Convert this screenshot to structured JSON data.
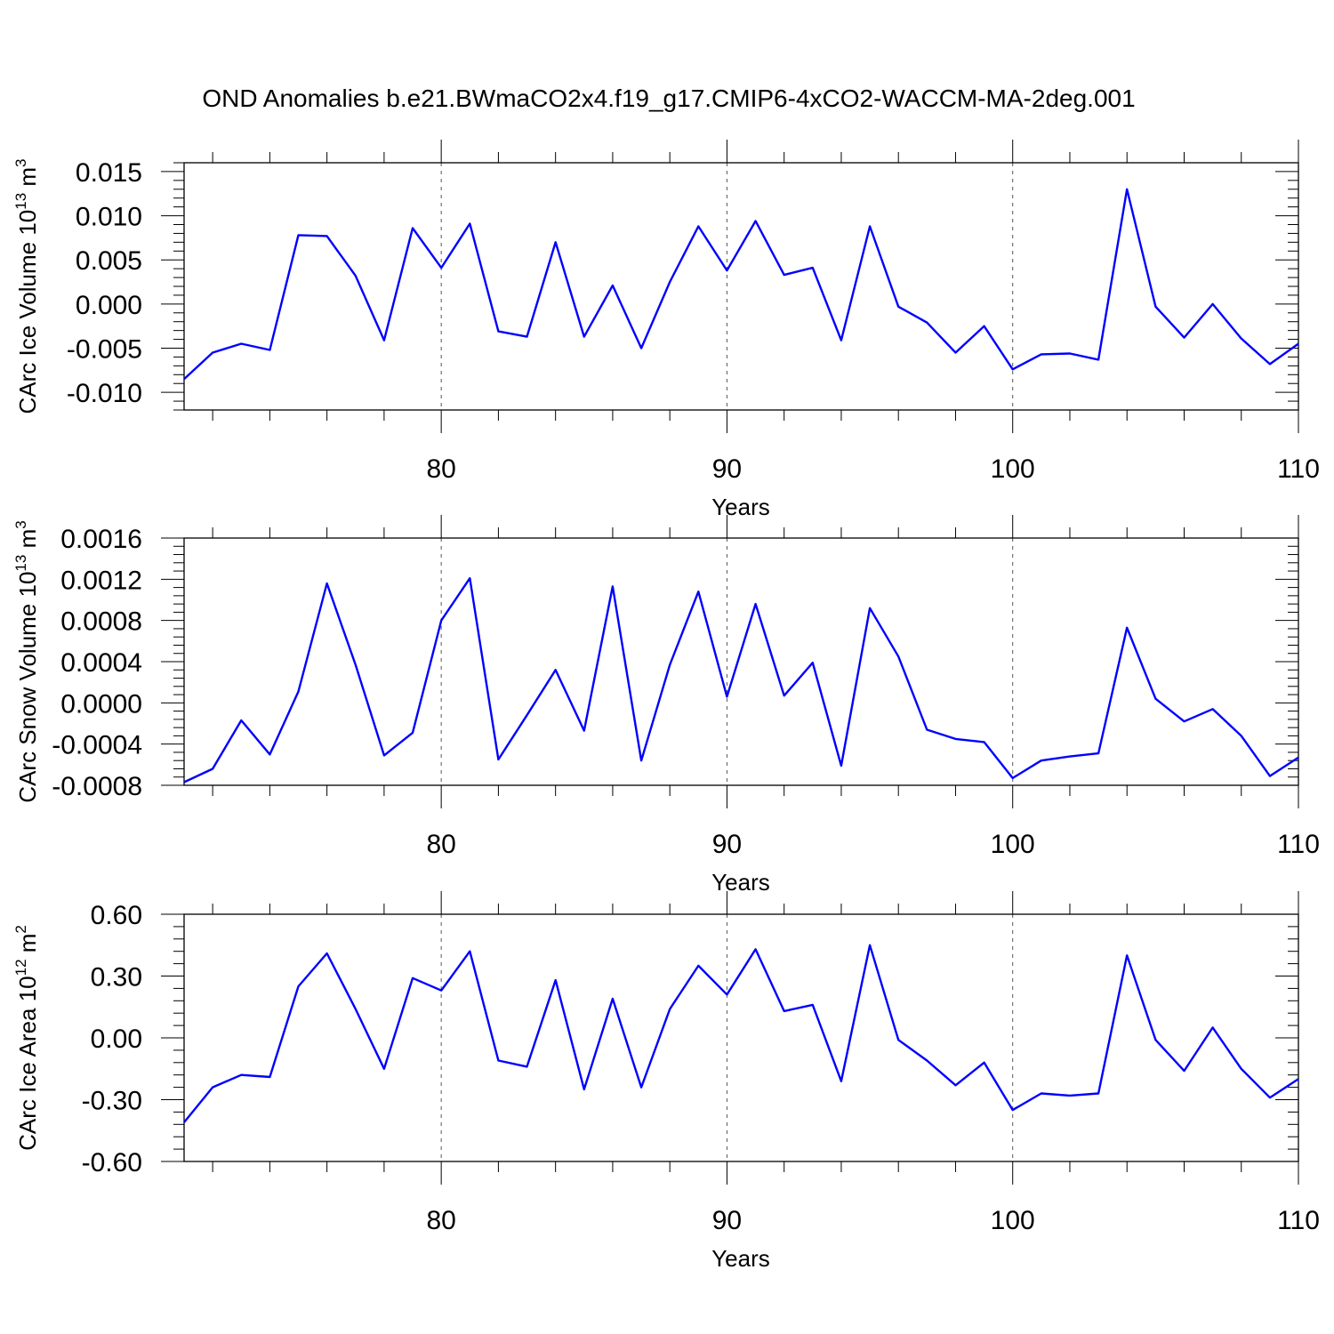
{
  "title": "OND Anomalies b.e21.BWmaCO2x4.f19_g17.CMIP6-4xCO2-WACCM-MA-2deg.001",
  "colors": {
    "line": "#0000ff",
    "axis": "#000000"
  },
  "chart_data": [
    {
      "type": "line",
      "ylabel_main": "CArc Ice Volume 10",
      "ylabel_exp": "13",
      "ylabel_unit": " m",
      "ylabel_unit_exp": "3",
      "xlabel": "Years",
      "xlim": [
        71,
        110
      ],
      "ylim": [
        -0.012,
        0.016
      ],
      "yticks": [
        -0.01,
        -0.005,
        0.0,
        0.005,
        0.01,
        0.015
      ],
      "ytick_labels": [
        "-0.010",
        "-0.005",
        "0.000",
        "0.005",
        "0.010",
        "0.015"
      ],
      "xticks": [
        80,
        90,
        100,
        110
      ],
      "xtick_labels": [
        "80",
        "90",
        "100",
        "110"
      ],
      "series": [
        {
          "name": "CArc Ice Volume",
          "x": [
            71,
            72,
            73,
            74,
            75,
            76,
            77,
            78,
            79,
            80,
            81,
            82,
            83,
            84,
            85,
            86,
            87,
            88,
            89,
            90,
            91,
            92,
            93,
            94,
            95,
            96,
            97,
            98,
            99,
            100,
            101,
            102,
            103,
            104,
            105,
            106,
            107,
            108,
            109,
            110
          ],
          "y": [
            -0.0085,
            -0.0055,
            -0.0045,
            -0.0052,
            0.0078,
            0.0077,
            0.0032,
            -0.0041,
            0.0086,
            0.0041,
            0.0091,
            -0.0031,
            -0.0037,
            0.007,
            -0.0037,
            0.0021,
            -0.005,
            0.0025,
            0.0088,
            0.0038,
            0.0094,
            0.0033,
            0.0041,
            -0.0041,
            0.0088,
            -0.0003,
            -0.0021,
            -0.0055,
            -0.0025,
            -0.0074,
            -0.0057,
            -0.0056,
            -0.0063,
            0.013,
            -0.0003,
            -0.0038,
            0.0,
            -0.0039,
            -0.0068,
            -0.0045
          ]
        }
      ]
    },
    {
      "type": "line",
      "ylabel_main": "CArc Snow Volume 10",
      "ylabel_exp": "13",
      "ylabel_unit": " m",
      "ylabel_unit_exp": "3",
      "xlabel": "Years",
      "xlim": [
        71,
        110
      ],
      "ylim": [
        -0.0008,
        0.0016
      ],
      "yticks": [
        -0.0008,
        -0.0004,
        0.0,
        0.0004,
        0.0008,
        0.0012,
        0.0016
      ],
      "ytick_labels": [
        "-0.0008",
        "-0.0004",
        "0.0000",
        "0.0004",
        "0.0008",
        "0.0012",
        "0.0016"
      ],
      "xticks": [
        80,
        90,
        100,
        110
      ],
      "xtick_labels": [
        "80",
        "90",
        "100",
        "110"
      ],
      "series": [
        {
          "name": "CArc Snow Volume",
          "x": [
            71,
            72,
            73,
            74,
            75,
            76,
            77,
            78,
            79,
            80,
            81,
            82,
            83,
            84,
            85,
            86,
            87,
            88,
            89,
            90,
            91,
            92,
            93,
            94,
            95,
            96,
            97,
            98,
            99,
            100,
            101,
            102,
            103,
            104,
            105,
            106,
            107,
            108,
            109,
            110
          ],
          "y": [
            -0.00077,
            -0.00064,
            -0.00017,
            -0.0005,
            0.00011,
            0.00116,
            0.00037,
            -0.00051,
            -0.00029,
            0.0008,
            0.00121,
            -0.00055,
            -0.00012,
            0.00032,
            -0.00027,
            0.00113,
            -0.00056,
            0.00037,
            0.00108,
            6e-05,
            0.00096,
            7e-05,
            0.00039,
            -0.00061,
            0.00092,
            0.00045,
            -0.00026,
            -0.00035,
            -0.00038,
            -0.00073,
            -0.00056,
            -0.00052,
            -0.00049,
            0.00073,
            4e-05,
            -0.00018,
            -6e-05,
            -0.00032,
            -0.00071,
            -0.00053
          ]
        }
      ]
    },
    {
      "type": "line",
      "ylabel_main": "CArc Ice Area 10",
      "ylabel_exp": "12",
      "ylabel_unit": " m",
      "ylabel_unit_exp": "2",
      "xlabel": "Years",
      "xlim": [
        71,
        110
      ],
      "ylim": [
        -0.6,
        0.6
      ],
      "yticks": [
        -0.6,
        -0.3,
        0.0,
        0.3,
        0.6
      ],
      "ytick_labels": [
        "-0.60",
        "-0.30",
        "0.00",
        "0.30",
        "0.60"
      ],
      "xticks": [
        80,
        90,
        100,
        110
      ],
      "xtick_labels": [
        "80",
        "90",
        "100",
        "110"
      ],
      "series": [
        {
          "name": "CArc Ice Area",
          "x": [
            71,
            72,
            73,
            74,
            75,
            76,
            77,
            78,
            79,
            80,
            81,
            82,
            83,
            84,
            85,
            86,
            87,
            88,
            89,
            90,
            91,
            92,
            93,
            94,
            95,
            96,
            97,
            98,
            99,
            100,
            101,
            102,
            103,
            104,
            105,
            106,
            107,
            108,
            109,
            110
          ],
          "y": [
            -0.41,
            -0.24,
            -0.18,
            -0.19,
            0.25,
            0.41,
            0.14,
            -0.15,
            0.29,
            0.23,
            0.42,
            -0.11,
            -0.14,
            0.28,
            -0.25,
            0.19,
            -0.24,
            0.14,
            0.35,
            0.21,
            0.43,
            0.13,
            0.16,
            -0.21,
            0.45,
            -0.01,
            -0.11,
            -0.23,
            -0.12,
            -0.35,
            -0.27,
            -0.28,
            -0.27,
            0.4,
            -0.01,
            -0.16,
            0.05,
            -0.15,
            -0.29,
            -0.2
          ]
        }
      ]
    }
  ]
}
